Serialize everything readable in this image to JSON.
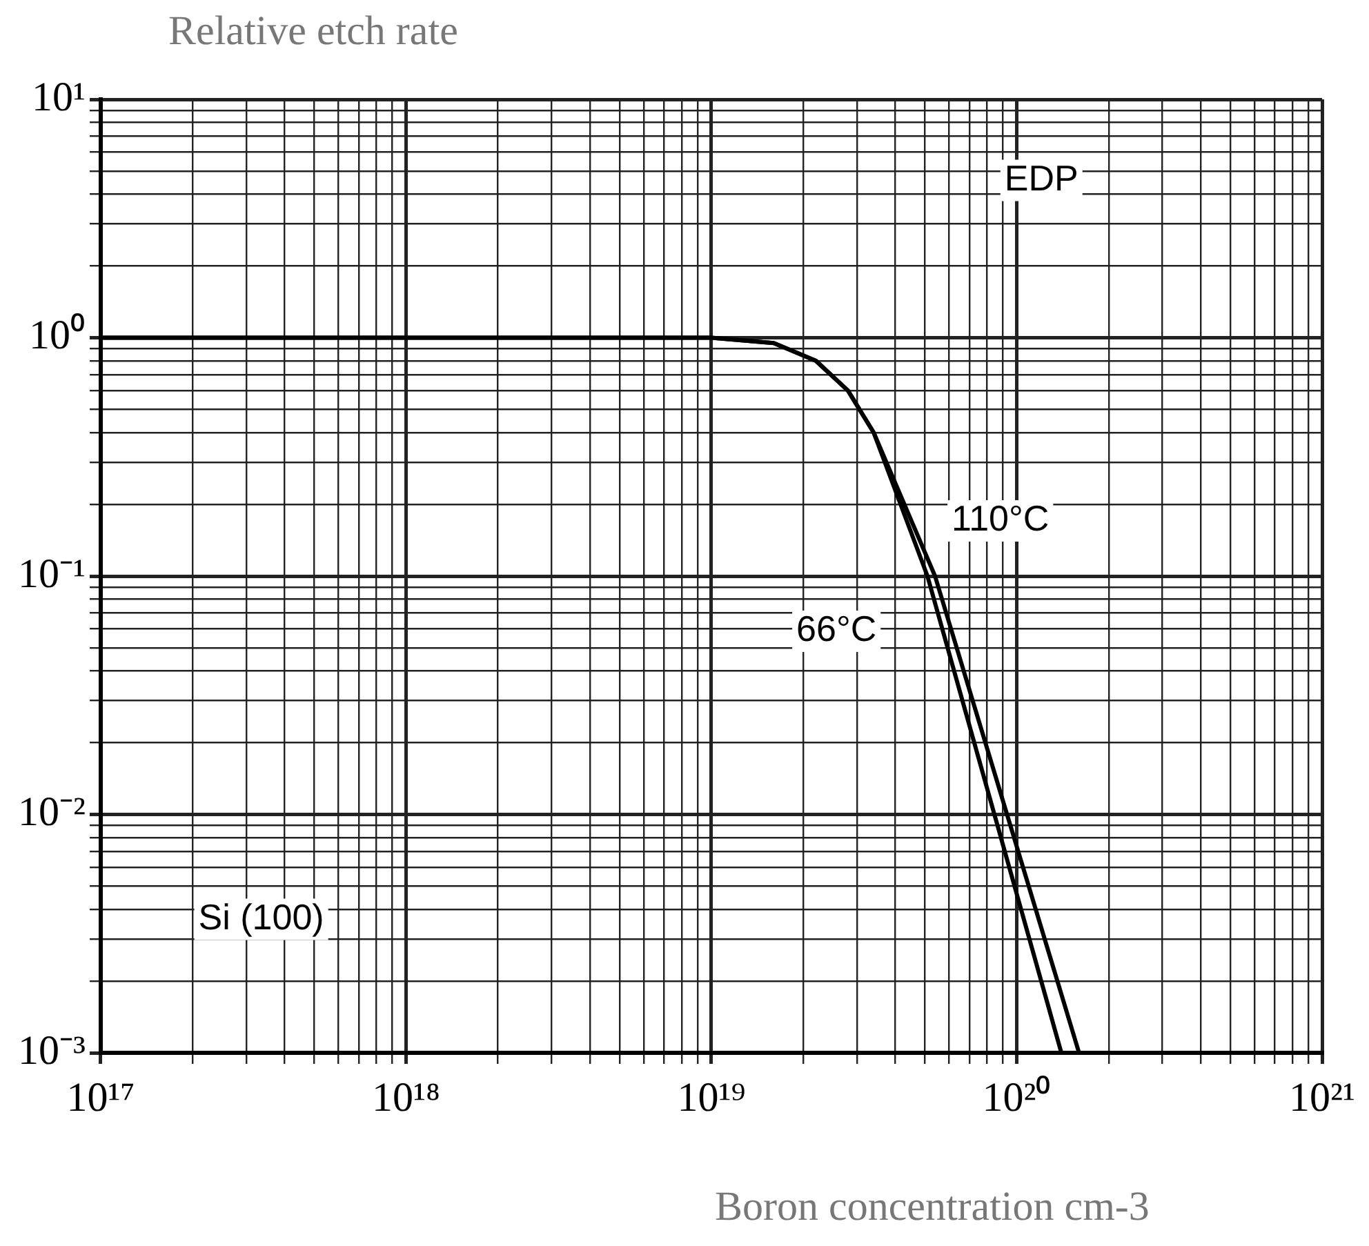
{
  "chart_data": {
    "type": "line",
    "ylabel": "Relative etch rate",
    "xlabel": "Boron concentration cm-3",
    "series": [
      {
        "name": "110°C",
        "color": "#000000",
        "x": [
          1e+17,
          1e+18,
          1e+19,
          1.6e+19,
          2.2e+19,
          2.8e+19,
          3.4e+19,
          5.4e+19,
          1.6e+20
        ],
        "values": [
          1,
          1,
          1,
          0.95,
          0.8,
          0.6,
          0.4,
          0.1,
          0.001
        ]
      },
      {
        "name": "66°C",
        "color": "#000000",
        "x": [
          1e+17,
          1e+18,
          1e+19,
          1.6e+19,
          2.2e+19,
          2.8e+19,
          3.4e+19,
          5.1e+19,
          1.4e+20
        ],
        "values": [
          1,
          1,
          1,
          0.95,
          0.8,
          0.6,
          0.4,
          0.1,
          0.001
        ]
      }
    ],
    "annotations": [
      "EDP",
      "Si (100)"
    ],
    "log": "xy",
    "xlim": [
      1e+17,
      1e+21
    ],
    "ylim": [
      0.001,
      10
    ],
    "xticks": [
      {
        "value": 1e+17,
        "label": "10¹⁷"
      },
      {
        "value": 2e+17,
        "label": null
      },
      {
        "value": 3e+17,
        "label": null
      },
      {
        "value": 4e+17,
        "label": null
      },
      {
        "value": 5e+17,
        "label": null
      },
      {
        "value": 6e+17,
        "label": null
      },
      {
        "value": 7e+17,
        "label": null
      },
      {
        "value": 8e+17,
        "label": null
      },
      {
        "value": 9e+17,
        "label": null
      },
      {
        "value": 1e+18,
        "label": "10¹⁸"
      },
      {
        "value": 2e+18,
        "label": null
      },
      {
        "value": 3e+18,
        "label": null
      },
      {
        "value": 4e+18,
        "label": null
      },
      {
        "value": 5e+18,
        "label": null
      },
      {
        "value": 6e+18,
        "label": null
      },
      {
        "value": 7e+18,
        "label": null
      },
      {
        "value": 8e+18,
        "label": null
      },
      {
        "value": 9e+18,
        "label": null
      },
      {
        "value": 1e+19,
        "label": "10¹⁹"
      },
      {
        "value": 2e+19,
        "label": null
      },
      {
        "value": 3e+19,
        "label": null
      },
      {
        "value": 4e+19,
        "label": null
      },
      {
        "value": 5e+19,
        "label": null
      },
      {
        "value": 6e+19,
        "label": null
      },
      {
        "value": 7e+19,
        "label": null
      },
      {
        "value": 8e+19,
        "label": null
      },
      {
        "value": 9e+19,
        "label": null
      },
      {
        "value": 1e+20,
        "label": "10²⁰"
      },
      {
        "value": 2e+20,
        "label": null
      },
      {
        "value": 3e+20,
        "label": null
      },
      {
        "value": 4e+20,
        "label": null
      },
      {
        "value": 5e+20,
        "label": null
      },
      {
        "value": 6e+20,
        "label": null
      },
      {
        "value": 7e+20,
        "label": null
      },
      {
        "value": 8e+20,
        "label": null
      },
      {
        "value": 9e+20,
        "label": null
      },
      {
        "value": 1e+21,
        "label": "10²¹"
      }
    ],
    "yticks": [
      {
        "value": 0.001,
        "label": "10⁻³"
      },
      {
        "value": 0.002,
        "label": null
      },
      {
        "value": 0.003,
        "label": null
      },
      {
        "value": 0.004,
        "label": null
      },
      {
        "value": 0.005,
        "label": null
      },
      {
        "value": 0.006,
        "label": null
      },
      {
        "value": 0.007,
        "label": null
      },
      {
        "value": 0.008,
        "label": null
      },
      {
        "value": 0.009,
        "label": null
      },
      {
        "value": 0.01,
        "label": "10⁻²"
      },
      {
        "value": 0.02,
        "label": null
      },
      {
        "value": 0.03,
        "label": null
      },
      {
        "value": 0.04,
        "label": null
      },
      {
        "value": 0.05,
        "label": null
      },
      {
        "value": 0.06,
        "label": null
      },
      {
        "value": 0.07,
        "label": null
      },
      {
        "value": 0.08,
        "label": null
      },
      {
        "value": 0.09,
        "label": null
      },
      {
        "value": 0.1,
        "label": "10⁻¹"
      },
      {
        "value": 0.2,
        "label": null
      },
      {
        "value": 0.3,
        "label": null
      },
      {
        "value": 0.4,
        "label": null
      },
      {
        "value": 0.5,
        "label": null
      },
      {
        "value": 0.6,
        "label": null
      },
      {
        "value": 0.7,
        "label": null
      },
      {
        "value": 0.8,
        "label": null
      },
      {
        "value": 0.9,
        "label": null
      },
      {
        "value": 1,
        "label": "10⁰"
      },
      {
        "value": 2,
        "label": null
      },
      {
        "value": 3,
        "label": null
      },
      {
        "value": 4,
        "label": null
      },
      {
        "value": 5,
        "label": null
      },
      {
        "value": 6,
        "label": null
      },
      {
        "value": 7,
        "label": null
      },
      {
        "value": 8,
        "label": null
      },
      {
        "value": 9,
        "label": null
      },
      {
        "value": 10,
        "label": "10¹"
      }
    ],
    "grid": true,
    "legend": false,
    "marker": "none",
    "line_style": "solid"
  }
}
